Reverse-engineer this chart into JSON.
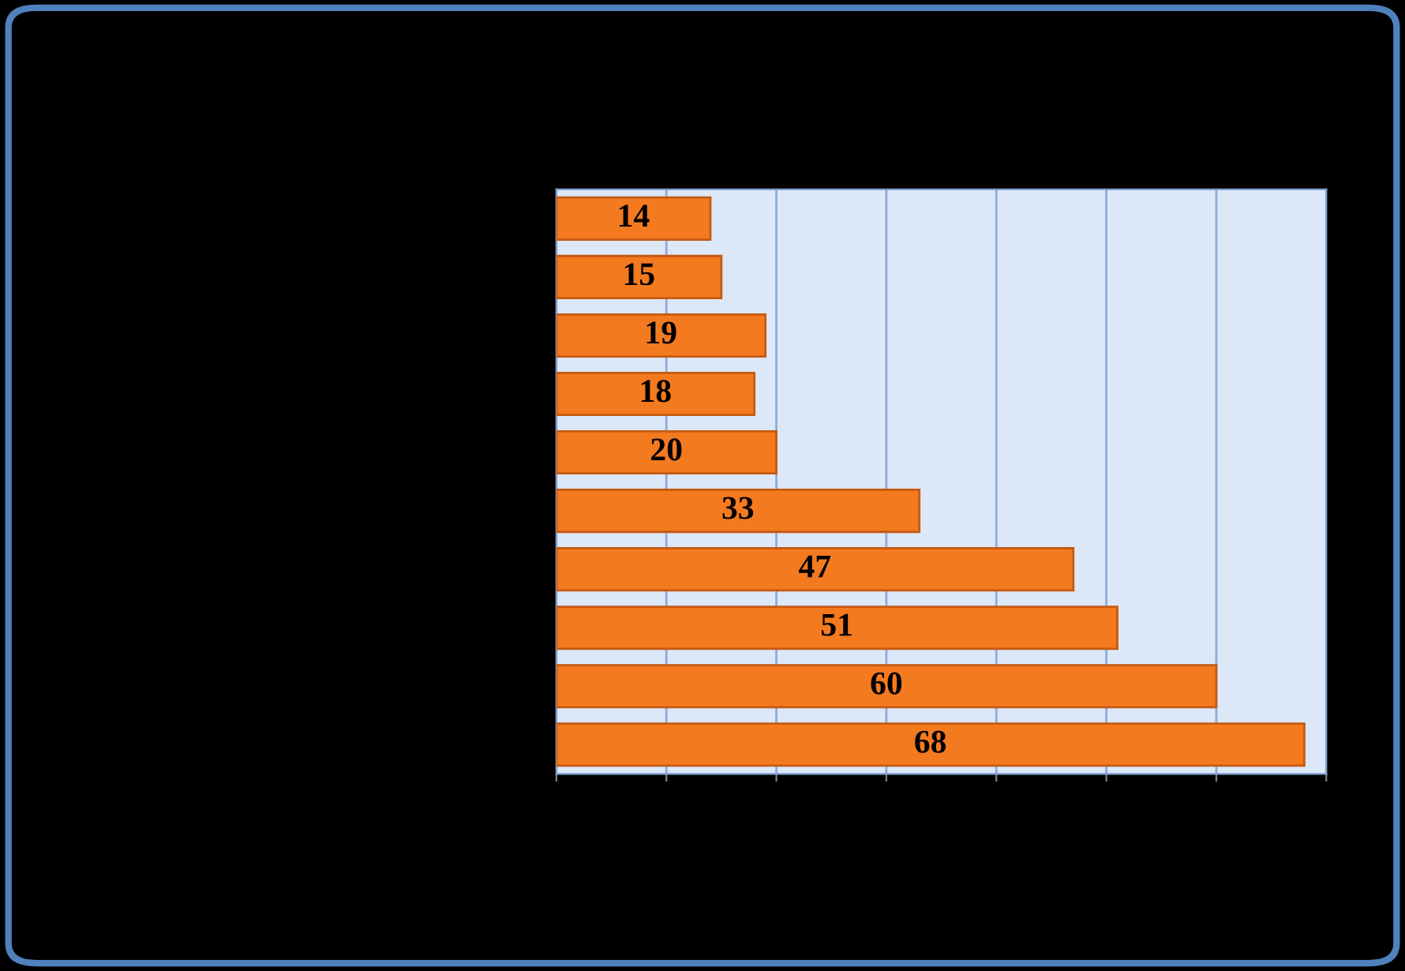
{
  "chart_data": {
    "type": "bar",
    "orientation": "horizontal",
    "categories": [
      null,
      null,
      null,
      null,
      null,
      null,
      null,
      null,
      null,
      null
    ],
    "values": [
      14,
      15,
      19,
      18,
      20,
      33,
      47,
      51,
      60,
      68
    ],
    "color": "#f47a1f",
    "xlim": [
      0,
      70
    ],
    "xticks": [
      {
        "value": 0,
        "label": null
      },
      {
        "value": 10,
        "label": null
      },
      {
        "value": 20,
        "label": null
      },
      {
        "value": 30,
        "label": null
      },
      {
        "value": 40,
        "label": null
      },
      {
        "value": 50,
        "label": null
      },
      {
        "value": 60,
        "label": null
      },
      {
        "value": 70,
        "label": null
      }
    ],
    "grid": "x",
    "data_labels": true
  }
}
